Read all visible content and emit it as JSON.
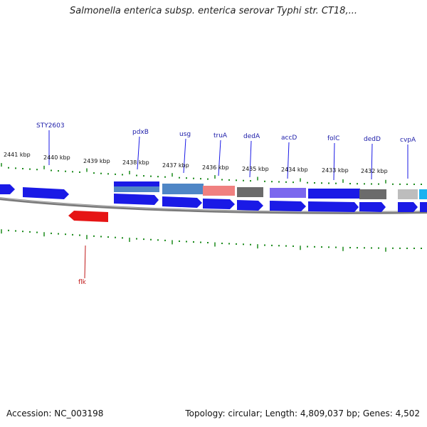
{
  "title": "Salmonella enterica subsp. enterica serovar Typhi str. CT18,...",
  "footer": {
    "accession": "Accession: NC_003198",
    "summary": "Topology: circular; Length: 4,809,037 bp; Genes: 4,502"
  },
  "colors": {
    "cds_blue": "#1a1ae6",
    "cds_red": "#e61414",
    "feature_steel": "#4f86c6",
    "feature_salmon": "#f08080",
    "feature_gray": "#6b6b6b",
    "feature_slate": "#7b68ee",
    "feature_light_gray": "#bdbdbd",
    "feature_cyan": "#1ab2f0",
    "backbone": "#808080",
    "tick_green": "#1a8a1a",
    "label_blue": "#1a1aa8",
    "label_red": "#c01818"
  },
  "scale_labels": [
    "2441 kbp",
    "2440 kbp",
    "2439 kbp",
    "2438 kbp",
    "2437 kbp",
    "2436 kbp",
    "2435 kbp",
    "2434 kbp",
    "2433 kbp",
    "2432 kbp"
  ],
  "gene_labels": [
    "STY2603",
    "pdxB",
    "usg",
    "truA",
    "dedA",
    "accD",
    "folC",
    "dedD",
    "cvpA"
  ],
  "bottom_gene_labels": [
    "flk"
  ]
}
